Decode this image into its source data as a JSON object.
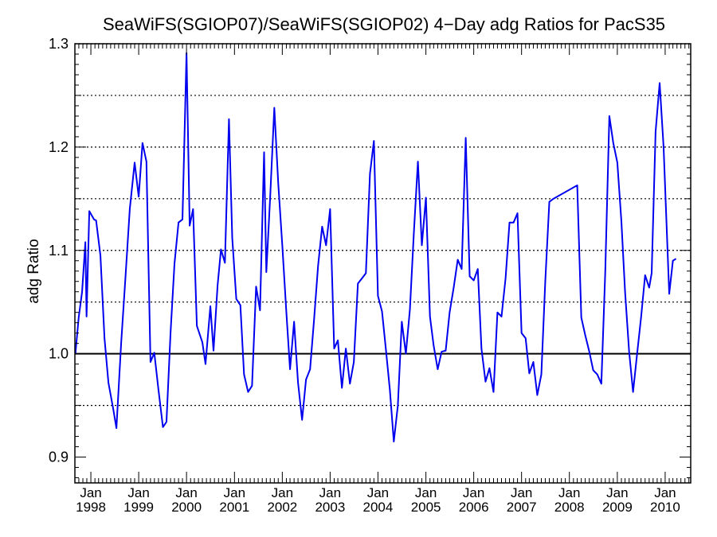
{
  "chart_data": {
    "type": "line",
    "title": "SeaWiFS(SGIOP07)/SeaWiFS(SGIOP02) 4−Day adg Ratios for PacS35",
    "xlabel": "",
    "ylabel": "adg Ratio",
    "ylim": [
      0.875,
      1.3
    ],
    "xlim": [
      "1997-09-01",
      "2010-07-15"
    ],
    "y_ticks": [
      0.9,
      1.0,
      1.1,
      1.2,
      1.3
    ],
    "y_tick_labels": [
      "0.9",
      "1.0",
      "1.1",
      "1.2",
      "1.3"
    ],
    "y_dotted_gridlines": [
      0.95,
      1.05,
      1.1,
      1.15,
      1.2,
      1.25,
      1.3
    ],
    "reference_line": 1.0,
    "x_tick_labels": [
      {
        "date": "1998-01-01",
        "month": "Jan",
        "year": "1998"
      },
      {
        "date": "1999-01-01",
        "month": "Jan",
        "year": "1999"
      },
      {
        "date": "2000-01-01",
        "month": "Jan",
        "year": "2000"
      },
      {
        "date": "2001-01-01",
        "month": "Jan",
        "year": "2001"
      },
      {
        "date": "2002-01-01",
        "month": "Jan",
        "year": "2002"
      },
      {
        "date": "2003-01-01",
        "month": "Jan",
        "year": "2003"
      },
      {
        "date": "2004-01-01",
        "month": "Jan",
        "year": "2004"
      },
      {
        "date": "2005-01-01",
        "month": "Jan",
        "year": "2005"
      },
      {
        "date": "2006-01-01",
        "month": "Jan",
        "year": "2006"
      },
      {
        "date": "2007-01-01",
        "month": "Jan",
        "year": "2007"
      },
      {
        "date": "2008-01-01",
        "month": "Jan",
        "year": "2008"
      },
      {
        "date": "2009-01-01",
        "month": "Jan",
        "year": "2009"
      },
      {
        "date": "2010-01-01",
        "month": "Jan",
        "year": "2010"
      }
    ],
    "series": [
      {
        "color": "#0000ee",
        "points": [
          [
            "1997-09-05",
            1.0
          ],
          [
            "1997-09-30",
            1.035
          ],
          [
            "1997-10-26",
            1.06
          ],
          [
            "1997-11-20",
            1.108
          ],
          [
            "1997-11-29",
            1.036
          ],
          [
            "1997-12-20",
            1.138
          ],
          [
            "1998-01-25",
            1.13
          ],
          [
            "1998-02-10",
            1.129
          ],
          [
            "1998-03-15",
            1.095
          ],
          [
            "1998-04-15",
            1.015
          ],
          [
            "1998-05-15",
            0.972
          ],
          [
            "1998-06-20",
            0.947
          ],
          [
            "1998-07-15",
            0.928
          ],
          [
            "1998-08-20",
            1.01
          ],
          [
            "1998-09-20",
            1.07
          ],
          [
            "1998-10-25",
            1.14
          ],
          [
            "1998-12-01",
            1.185
          ],
          [
            "1999-01-01",
            1.152
          ],
          [
            "1999-01-30",
            1.204
          ],
          [
            "1999-03-01",
            1.186
          ],
          [
            "1999-04-01",
            0.992
          ],
          [
            "1999-04-30",
            1.001
          ],
          [
            "1999-06-01",
            0.965
          ],
          [
            "1999-07-05",
            0.929
          ],
          [
            "1999-08-01",
            0.934
          ],
          [
            "1999-09-01",
            1.02
          ],
          [
            "1999-10-01",
            1.087
          ],
          [
            "1999-11-01",
            1.127
          ],
          [
            "1999-12-01",
            1.13
          ],
          [
            "2000-01-01",
            1.291
          ],
          [
            "2000-01-25",
            1.124
          ],
          [
            "2000-02-20",
            1.14
          ],
          [
            "2000-03-20",
            1.027
          ],
          [
            "2000-05-01",
            1.011
          ],
          [
            "2000-05-25",
            0.99
          ],
          [
            "2000-07-01",
            1.046
          ],
          [
            "2000-07-25",
            1.003
          ],
          [
            "2000-08-25",
            1.066
          ],
          [
            "2000-09-20",
            1.101
          ],
          [
            "2000-10-20",
            1.088
          ],
          [
            "2000-11-20",
            1.227
          ],
          [
            "2000-12-15",
            1.112
          ],
          [
            "2001-01-15",
            1.053
          ],
          [
            "2001-02-15",
            1.047
          ],
          [
            "2001-03-15",
            0.98
          ],
          [
            "2001-04-15",
            0.963
          ],
          [
            "2001-05-15",
            0.969
          ],
          [
            "2001-06-15",
            1.065
          ],
          [
            "2001-07-15",
            1.042
          ],
          [
            "2001-08-15",
            1.195
          ],
          [
            "2001-09-01",
            1.079
          ],
          [
            "2001-10-01",
            1.153
          ],
          [
            "2001-11-01",
            1.238
          ],
          [
            "2001-12-01",
            1.165
          ],
          [
            "2002-01-01",
            1.105
          ],
          [
            "2002-02-01",
            1.04
          ],
          [
            "2002-03-01",
            0.985
          ],
          [
            "2002-04-01",
            1.031
          ],
          [
            "2002-05-01",
            0.972
          ],
          [
            "2002-06-01",
            0.936
          ],
          [
            "2002-07-01",
            0.975
          ],
          [
            "2002-08-01",
            0.985
          ],
          [
            "2002-09-01",
            1.034
          ],
          [
            "2002-10-01",
            1.085
          ],
          [
            "2002-11-01",
            1.123
          ],
          [
            "2002-12-01",
            1.105
          ],
          [
            "2003-01-01",
            1.14
          ],
          [
            "2003-02-01",
            1.005
          ],
          [
            "2003-03-01",
            1.013
          ],
          [
            "2003-04-01",
            0.967
          ],
          [
            "2003-05-01",
            1.005
          ],
          [
            "2003-06-01",
            0.971
          ],
          [
            "2003-07-01",
            0.992
          ],
          [
            "2003-08-01",
            1.068
          ],
          [
            "2003-09-01",
            1.073
          ],
          [
            "2003-10-01",
            1.078
          ],
          [
            "2003-11-01",
            1.174
          ],
          [
            "2003-12-01",
            1.206
          ],
          [
            "2004-01-01",
            1.056
          ],
          [
            "2004-02-01",
            1.041
          ],
          [
            "2004-03-01",
            1.005
          ],
          [
            "2004-04-01",
            0.965
          ],
          [
            "2004-05-01",
            0.915
          ],
          [
            "2004-06-01",
            0.95
          ],
          [
            "2004-07-01",
            1.031
          ],
          [
            "2004-08-01",
            1.0
          ],
          [
            "2004-09-01",
            1.043
          ],
          [
            "2004-10-01",
            1.117
          ],
          [
            "2004-11-01",
            1.186
          ],
          [
            "2004-12-01",
            1.105
          ],
          [
            "2005-01-01",
            1.151
          ],
          [
            "2005-02-01",
            1.036
          ],
          [
            "2005-03-01",
            1.008
          ],
          [
            "2005-04-01",
            0.985
          ],
          [
            "2005-05-01",
            1.002
          ],
          [
            "2005-06-01",
            1.003
          ],
          [
            "2005-07-01",
            1.04
          ],
          [
            "2005-08-01",
            1.064
          ],
          [
            "2005-09-01",
            1.091
          ],
          [
            "2005-10-01",
            1.082
          ],
          [
            "2005-11-01",
            1.209
          ],
          [
            "2005-12-01",
            1.075
          ],
          [
            "2006-01-01",
            1.071
          ],
          [
            "2006-02-01",
            1.082
          ],
          [
            "2006-03-01",
            1.005
          ],
          [
            "2006-04-01",
            0.973
          ],
          [
            "2006-05-01",
            0.986
          ],
          [
            "2006-06-01",
            0.963
          ],
          [
            "2006-07-01",
            1.04
          ],
          [
            "2006-08-01",
            1.036
          ],
          [
            "2006-09-01",
            1.073
          ],
          [
            "2006-10-01",
            1.127
          ],
          [
            "2006-11-01",
            1.127
          ],
          [
            "2006-12-01",
            1.136
          ],
          [
            "2007-01-01",
            1.02
          ],
          [
            "2007-02-01",
            1.015
          ],
          [
            "2007-03-01",
            0.981
          ],
          [
            "2007-04-01",
            0.992
          ],
          [
            "2007-05-01",
            0.96
          ],
          [
            "2007-06-01",
            0.98
          ],
          [
            "2007-07-01",
            1.07
          ],
          [
            "2007-08-01",
            1.147
          ],
          [
            "2007-09-01",
            1.15
          ],
          [
            "2008-03-01",
            1.163
          ],
          [
            "2008-04-01",
            1.035
          ],
          [
            "2008-05-01",
            1.018
          ],
          [
            "2008-06-01",
            1.002
          ],
          [
            "2008-07-01",
            0.984
          ],
          [
            "2008-08-01",
            0.98
          ],
          [
            "2008-09-01",
            0.971
          ],
          [
            "2008-10-01",
            1.08
          ],
          [
            "2008-11-01",
            1.23
          ],
          [
            "2008-12-01",
            1.204
          ],
          [
            "2009-01-01",
            1.185
          ],
          [
            "2009-02-01",
            1.128
          ],
          [
            "2009-03-01",
            1.06
          ],
          [
            "2009-04-01",
            1.002
          ],
          [
            "2009-05-01",
            0.963
          ],
          [
            "2009-06-01",
            1.0
          ],
          [
            "2009-07-01",
            1.035
          ],
          [
            "2009-08-01",
            1.076
          ],
          [
            "2009-09-01",
            1.064
          ],
          [
            "2009-09-20",
            1.078
          ],
          [
            "2009-10-20",
            1.215
          ],
          [
            "2009-11-20",
            1.262
          ],
          [
            "2009-12-20",
            1.2
          ],
          [
            "2010-02-01",
            1.058
          ],
          [
            "2010-03-01",
            1.09
          ],
          [
            "2010-03-25",
            1.092
          ]
        ]
      }
    ]
  }
}
